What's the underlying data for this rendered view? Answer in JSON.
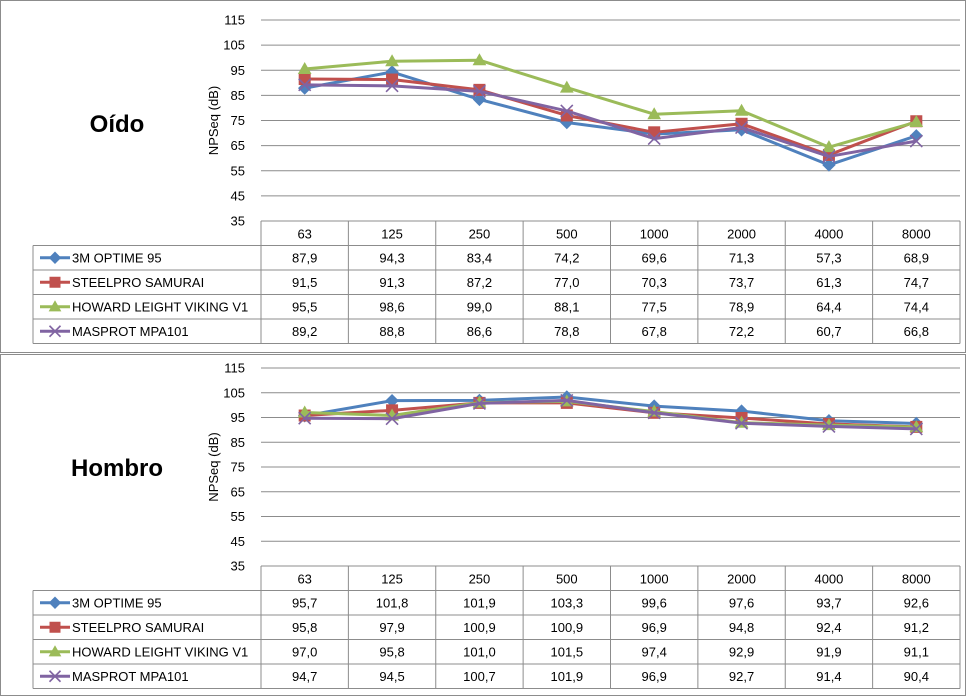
{
  "chart_data": [
    {
      "type": "line",
      "title": "Oído",
      "ylabel": "NPSeq (dB)",
      "ylim": [
        35,
        115
      ],
      "yticks": [
        35,
        45,
        55,
        65,
        75,
        85,
        95,
        105,
        115
      ],
      "grid": true,
      "legend": "data-table",
      "categories": [
        "63",
        "125",
        "250",
        "500",
        "1000",
        "2000",
        "4000",
        "8000"
      ],
      "series": [
        {
          "name": "3M OPTIME 95",
          "color": "#4f81bd",
          "marker": "diamond",
          "values": [
            87.9,
            94.3,
            83.4,
            74.2,
            69.6,
            71.3,
            57.3,
            68.9
          ],
          "labels": [
            "87,9",
            "94,3",
            "83,4",
            "74,2",
            "69,6",
            "71,3",
            "57,3",
            "68,9"
          ]
        },
        {
          "name": "STEELPRO SAMURAI",
          "color": "#c0504d",
          "marker": "square",
          "values": [
            91.5,
            91.3,
            87.2,
            77.0,
            70.3,
            73.7,
            61.3,
            74.7
          ],
          "labels": [
            "91,5",
            "91,3",
            "87,2",
            "77,0",
            "70,3",
            "73,7",
            "61,3",
            "74,7"
          ]
        },
        {
          "name": "HOWARD LEIGHT VIKING V1",
          "color": "#9bbb59",
          "marker": "triangle",
          "values": [
            95.5,
            98.6,
            99.0,
            88.1,
            77.5,
            78.9,
            64.4,
            74.4
          ],
          "labels": [
            "95,5",
            "98,6",
            "99,0",
            "88,1",
            "77,5",
            "78,9",
            "64,4",
            "74,4"
          ]
        },
        {
          "name": "MASPROT MPA101",
          "color": "#8064a2",
          "marker": "x",
          "values": [
            89.2,
            88.8,
            86.6,
            78.8,
            67.8,
            72.2,
            60.7,
            66.8
          ],
          "labels": [
            "89,2",
            "88,8",
            "86,6",
            "78,8",
            "67,8",
            "72,2",
            "60,7",
            "66,8"
          ]
        }
      ]
    },
    {
      "type": "line",
      "title": "Hombro",
      "ylabel": "NPSeq (dB)",
      "ylim": [
        35,
        115
      ],
      "yticks": [
        35,
        45,
        55,
        65,
        75,
        85,
        95,
        105,
        115
      ],
      "grid": true,
      "legend": "data-table",
      "categories": [
        "63",
        "125",
        "250",
        "500",
        "1000",
        "2000",
        "4000",
        "8000"
      ],
      "series": [
        {
          "name": "3M OPTIME 95",
          "color": "#4f81bd",
          "marker": "diamond",
          "values": [
            95.7,
            101.8,
            101.9,
            103.3,
            99.6,
            97.6,
            93.7,
            92.6
          ],
          "labels": [
            "95,7",
            "101,8",
            "101,9",
            "103,3",
            "99,6",
            "97,6",
            "93,7",
            "92,6"
          ]
        },
        {
          "name": "STEELPRO SAMURAI",
          "color": "#c0504d",
          "marker": "square",
          "values": [
            95.8,
            97.9,
            100.9,
            100.9,
            96.9,
            94.8,
            92.4,
            91.2
          ],
          "labels": [
            "95,8",
            "97,9",
            "100,9",
            "100,9",
            "96,9",
            "94,8",
            "92,4",
            "91,2"
          ]
        },
        {
          "name": "HOWARD LEIGHT VIKING V1",
          "color": "#9bbb59",
          "marker": "triangle",
          "values": [
            97.0,
            95.8,
            101.0,
            101.5,
            97.4,
            92.9,
            91.9,
            91.1
          ],
          "labels": [
            "97,0",
            "95,8",
            "101,0",
            "101,5",
            "97,4",
            "92,9",
            "91,9",
            "91,1"
          ]
        },
        {
          "name": "MASPROT MPA101",
          "color": "#8064a2",
          "marker": "x",
          "values": [
            94.7,
            94.5,
            100.7,
            101.9,
            96.9,
            92.7,
            91.4,
            90.4
          ],
          "labels": [
            "94,7",
            "94,5",
            "100,7",
            "101,9",
            "96,9",
            "92,7",
            "91,4",
            "90,4"
          ]
        }
      ]
    }
  ]
}
